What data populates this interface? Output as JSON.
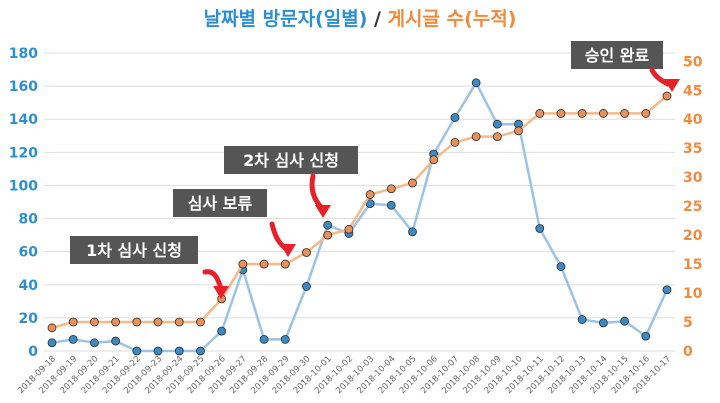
{
  "title": {
    "visitors": "날짜별 방문자(일별)",
    "separator": " / ",
    "posts": "게시글 수(누적)"
  },
  "colors": {
    "visitors_line": "#9cc3e6",
    "visitors_marker": "#3b8ac4",
    "posts_line": "#f6b98a",
    "posts_marker": "#e8915a",
    "left_axis_text": "#2e8fd0",
    "right_axis_text": "#f08a3c",
    "grid": "#dddddd",
    "annotation_bg": "#555555",
    "annotation_text": "#ffffff",
    "arrow": "#e8202a"
  },
  "chart_data": {
    "type": "line",
    "categories": [
      "2018-09-18",
      "2018-09-19",
      "2018-09-20",
      "2018-09-21",
      "2018-09-22",
      "2018-09-23",
      "2018-09-24",
      "2018-09-25",
      "2018-09-26",
      "2018-09-27",
      "2018-09-28",
      "2018-09-29",
      "2018-09-30",
      "2018-10-01",
      "2018-10-02",
      "2018-10-03",
      "2018-10-04",
      "2018-10-05",
      "2018-10-06",
      "2018-10-07",
      "2018-10-08",
      "2018-10-09",
      "2018-10-10",
      "2018-10-11",
      "2018-10-12",
      "2018-10-13",
      "2018-10-14",
      "2018-10-15",
      "2018-10-16",
      "2018-10-17"
    ],
    "series": [
      {
        "axis": "left",
        "values": [
          5,
          7,
          5,
          6,
          0,
          0,
          0,
          0,
          12,
          49,
          7,
          7,
          39,
          76,
          71,
          89,
          88,
          72,
          119,
          141,
          162,
          137,
          137,
          74,
          51,
          19,
          17,
          18,
          9,
          37
        ]
      },
      {
        "axis": "right",
        "values": [
          4,
          5,
          5,
          5,
          5,
          5,
          5,
          5,
          9,
          15,
          15,
          15,
          17,
          20,
          21,
          27,
          28,
          29,
          33,
          36,
          37,
          37,
          38,
          41,
          41,
          41,
          41,
          41,
          41,
          44
        ]
      }
    ],
    "ylim_left": [
      0,
      180
    ],
    "yticks_left": [
      0,
      20,
      40,
      60,
      80,
      100,
      120,
      140,
      160,
      180
    ],
    "ylim_right": [
      0,
      51.4286
    ],
    "yticks_right": [
      0,
      5,
      10,
      15,
      20,
      25,
      30,
      35,
      40,
      45,
      50
    ],
    "grid": true,
    "annotations": [
      {
        "label": "1차 심사 신청",
        "index": 8
      },
      {
        "label": "심사 보류",
        "index": 11
      },
      {
        "label": "2차 심사 신청",
        "index": 13
      },
      {
        "label": "승인 완료",
        "index": 29
      }
    ]
  }
}
